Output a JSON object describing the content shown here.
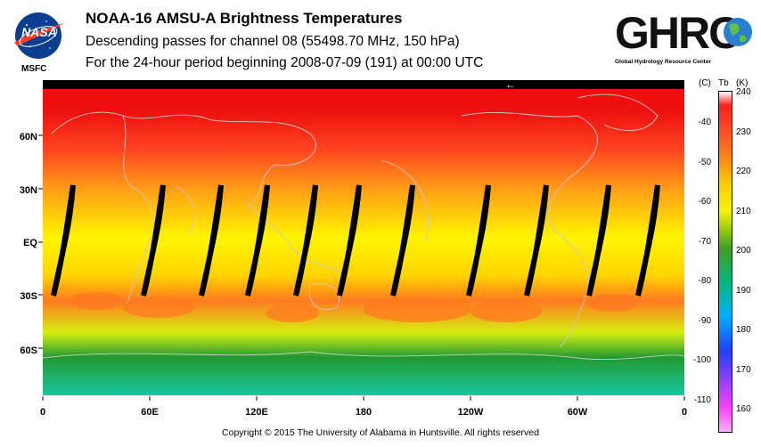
{
  "header": {
    "title": "NOAA-16 AMSU-A Brightness Temperatures",
    "subtitle": "Descending passes for channel 08 (55498.70 MHz, 150 hPa)",
    "period": "For the 24-hour period beginning 2008-07-09 (191) at 00:00 UTC"
  },
  "logos": {
    "nasa_text": "NASA",
    "msfc_text": "MSFC",
    "ghrc_text": "GHRC",
    "ghrc_subtitle": "Global Hydrology Resource Center"
  },
  "map": {
    "lat_labels": [
      "60N",
      "30N",
      "EQ",
      "30S",
      "60S"
    ],
    "lon_labels": [
      "0",
      "60E",
      "120E",
      "180",
      "120W",
      "60W",
      "0"
    ],
    "direction_arrow": "←",
    "field_colors": {
      "pole_north": "#ee1010",
      "high_lat": "#ff4520",
      "mid_lat": "#ff9a18",
      "subtropics": "#ffd400",
      "tropics": "#fff500",
      "south_warm": "#ff7a20",
      "south_mid": "#d8ee10",
      "south_green": "#209a30",
      "south_pole": "#18c8a0"
    }
  },
  "colorbar": {
    "header_c": "(C)",
    "header_tb": "Tb",
    "header_k": "(K)",
    "celsius_ticks": [
      "-40",
      "-50",
      "-60",
      "-70",
      "-80",
      "-90",
      "-100",
      "-110"
    ],
    "kelvin_ticks": [
      "240",
      "230",
      "220",
      "210",
      "200",
      "190",
      "180",
      "170",
      "160"
    ],
    "colors": [
      "#ffffff",
      "#ff2020",
      "#ff6a20",
      "#ffcc00",
      "#f5f500",
      "#40a020",
      "#00b880",
      "#00b0ff",
      "#2040ff",
      "#a040ff",
      "#ff40ff",
      "#ffb0ff"
    ]
  },
  "footer": {
    "copyright": "Copyright © 2015 The University of Alabama in Huntsville.  All rights reserved"
  }
}
